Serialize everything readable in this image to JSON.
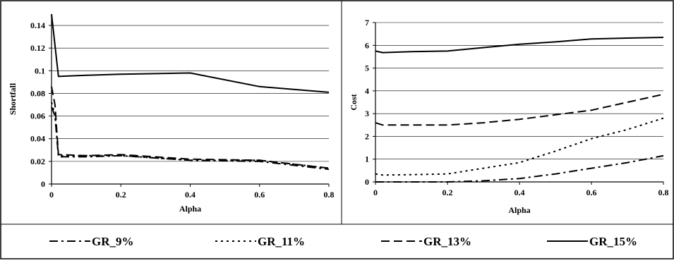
{
  "chart_data": [
    {
      "type": "line",
      "xlabel": "Alpha",
      "ylabel": "Shortfall",
      "xlim": [
        0,
        0.8
      ],
      "ylim": [
        0,
        0.15
      ],
      "xticks": [
        "0",
        "0.2",
        "0.4",
        "0.6",
        "0.8"
      ],
      "yticks": [
        "0",
        "0.02",
        "0.04",
        "0.06",
        "0.08",
        "0.1",
        "0.12",
        "0.14"
      ],
      "grid": "horizontal",
      "series": [
        {
          "name": "GR_9%",
          "x": [
            0,
            0.01,
            0.02,
            0.1,
            0.2,
            0.4,
            0.6,
            0.8
          ],
          "y": [
            0.068,
            0.06,
            0.024,
            0.024,
            0.025,
            0.021,
            0.02,
            0.013
          ]
        },
        {
          "name": "GR_11%",
          "x": [
            0,
            0.01,
            0.02,
            0.1,
            0.2,
            0.4,
            0.6,
            0.8
          ],
          "y": [
            0.072,
            0.061,
            0.025,
            0.025,
            0.025,
            0.021,
            0.021,
            0.014
          ]
        },
        {
          "name": "GR_13%",
          "x": [
            0,
            0.01,
            0.02,
            0.1,
            0.2,
            0.4,
            0.6,
            0.8
          ],
          "y": [
            0.086,
            0.07,
            0.026,
            0.025,
            0.026,
            0.022,
            0.021,
            0.014
          ]
        },
        {
          "name": "GR_15%",
          "x": [
            0,
            0.02,
            0.1,
            0.2,
            0.4,
            0.6,
            0.8
          ],
          "y": [
            0.15,
            0.095,
            0.096,
            0.097,
            0.098,
            0.086,
            0.081
          ]
        }
      ]
    },
    {
      "type": "line",
      "xlabel": "Alpha",
      "ylabel": "Cost",
      "xlim": [
        0,
        0.8
      ],
      "ylim": [
        0,
        7
      ],
      "xticks": [
        "0",
        "0.2",
        "0.4",
        "0.6",
        "0.8"
      ],
      "yticks": [
        "0",
        "1",
        "2",
        "3",
        "4",
        "5",
        "6",
        "7"
      ],
      "grid": "horizontal",
      "series": [
        {
          "name": "GR_9%",
          "x": [
            0,
            0.1,
            0.2,
            0.3,
            0.4,
            0.5,
            0.6,
            0.7,
            0.8
          ],
          "y": [
            0,
            0,
            0,
            0.05,
            0.15,
            0.35,
            0.6,
            0.85,
            1.15
          ]
        },
        {
          "name": "GR_11%",
          "x": [
            0,
            0.02,
            0.1,
            0.2,
            0.3,
            0.4,
            0.5,
            0.6,
            0.7,
            0.8
          ],
          "y": [
            0.35,
            0.3,
            0.32,
            0.35,
            0.6,
            0.85,
            1.35,
            1.9,
            2.3,
            2.8
          ]
        },
        {
          "name": "GR_13%",
          "x": [
            0,
            0.02,
            0.1,
            0.2,
            0.3,
            0.4,
            0.5,
            0.6,
            0.7,
            0.8
          ],
          "y": [
            2.6,
            2.5,
            2.5,
            2.5,
            2.6,
            2.75,
            2.95,
            3.15,
            3.5,
            3.85
          ]
        },
        {
          "name": "GR_15%",
          "x": [
            0,
            0.02,
            0.1,
            0.2,
            0.3,
            0.4,
            0.5,
            0.6,
            0.7,
            0.8
          ],
          "y": [
            5.75,
            5.68,
            5.72,
            5.75,
            5.9,
            6.05,
            6.15,
            6.28,
            6.32,
            6.35
          ]
        }
      ]
    }
  ],
  "legend": {
    "placement": "bottom",
    "items": [
      {
        "label": "GR_9%",
        "style": "dash-dot"
      },
      {
        "label": "GR_11%",
        "style": "dotted"
      },
      {
        "label": "GR_13%",
        "style": "dashed"
      },
      {
        "label": "GR_15%",
        "style": "solid"
      }
    ]
  }
}
